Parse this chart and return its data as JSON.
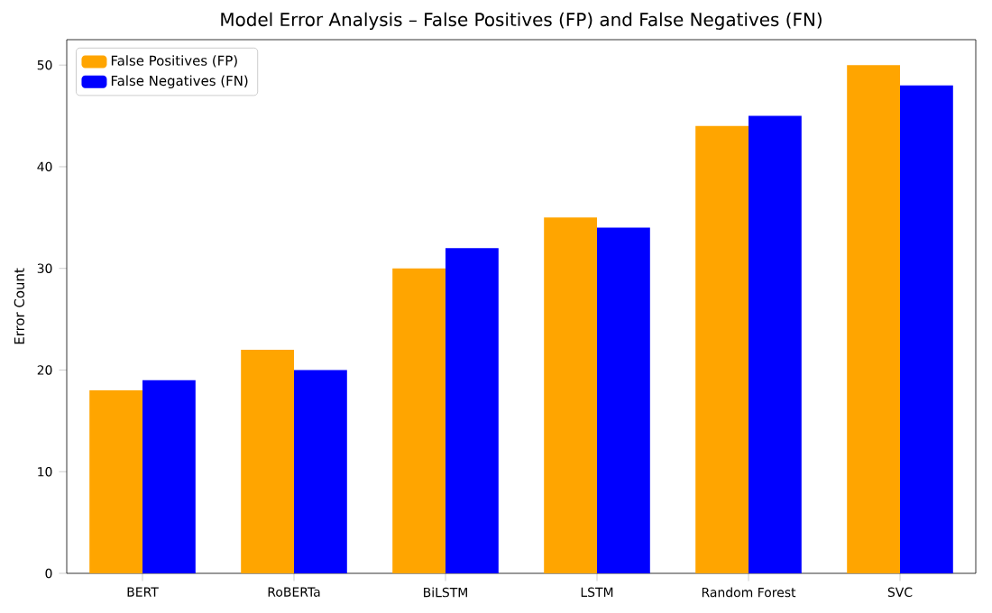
{
  "chart_data": {
    "type": "bar",
    "title": "Model Error Analysis – False Positives (FP) and False Negatives (FN)",
    "ylabel": "Error Count",
    "categories": [
      "BERT",
      "RoBERTa",
      "BiLSTM",
      "LSTM",
      "Random Forest",
      "SVC"
    ],
    "series": [
      {
        "name": "False Positives (FP)",
        "color": "#ffa500",
        "values": [
          18,
          22,
          30,
          35,
          44,
          50
        ]
      },
      {
        "name": "False Negatives (FN)",
        "color": "#0000ff",
        "values": [
          19,
          20,
          32,
          34,
          45,
          48
        ]
      }
    ],
    "ylim": [
      0,
      52.5
    ],
    "yticks": [
      0,
      10,
      20,
      30,
      40,
      50
    ],
    "legend": "top left",
    "grid": false
  }
}
